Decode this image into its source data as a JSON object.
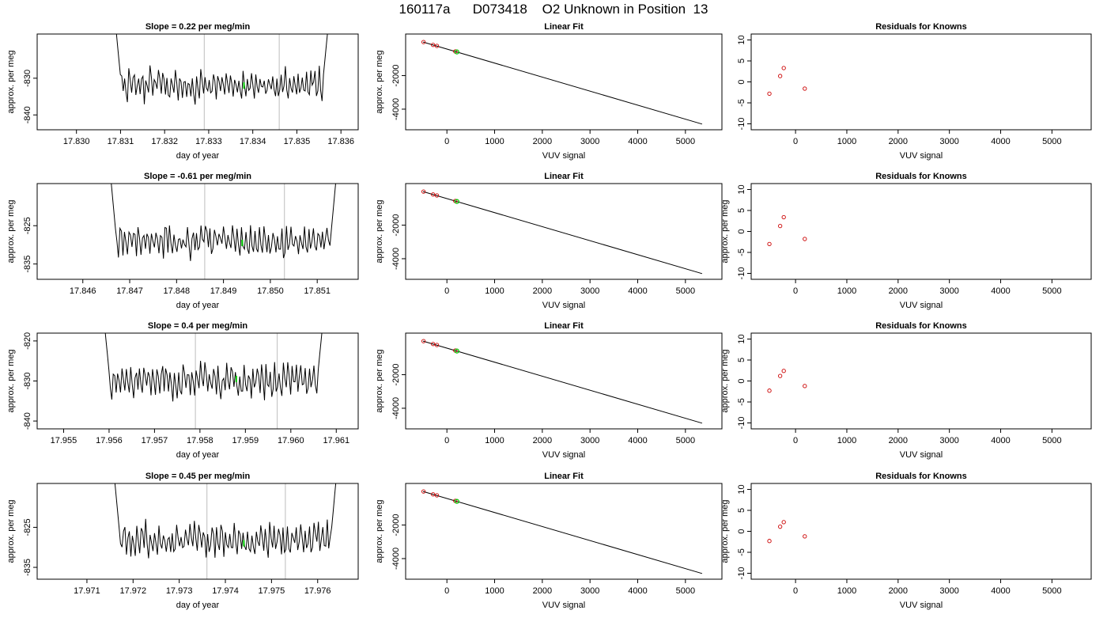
{
  "title": "160117a      D073418    O2 Unknown in Position  13",
  "colors": {
    "trace": "#000000",
    "marker": "#00cc00",
    "known_points": "#cc0000",
    "gridline": "#c8c8c8"
  },
  "chart_data": [
    {
      "type": "line",
      "row": 0,
      "panel": "timeseries",
      "title": "Slope =  0.22  per meg/min",
      "xlabel": "day of year",
      "ylabel": "approx. per meg",
      "xlim": [
        17.8294,
        17.8361
      ],
      "ylim": [
        -843,
        -819
      ],
      "xticks": [
        "17.830",
        "17.831",
        "17.832",
        "17.833",
        "17.834",
        "17.835",
        "17.836"
      ],
      "yticks": [
        "-830",
        "-840"
      ],
      "vlines": [
        17.8329,
        17.8346
      ],
      "t_start": 17.8309,
      "t_end": 17.8357,
      "y_start": -817,
      "y_end": -817,
      "center": -832,
      "amp": 4,
      "seed": 3,
      "marker": {
        "x": 17.8338,
        "y": -832
      }
    },
    {
      "type": "scatter",
      "row": 0,
      "panel": "fit",
      "title": "Linear Fit",
      "xlabel": "VUV signal",
      "ylabel": "approx. per meg",
      "xlim": [
        -600,
        5500
      ],
      "ylim": [
        -5000,
        250
      ],
      "xticks": [
        "0",
        "1000",
        "2000",
        "3000",
        "4000",
        "5000"
      ],
      "yticks": [
        "-2000",
        "-4000"
      ],
      "line": [
        [
          -500,
          0
        ],
        [
          5350,
          -4890
        ]
      ],
      "points": [
        [
          -490,
          0
        ],
        [
          -290,
          -170
        ],
        [
          -210,
          -230
        ],
        [
          175,
          -560
        ]
      ],
      "unknown": [
        210,
        -590
      ]
    },
    {
      "type": "scatter",
      "row": 0,
      "panel": "residuals",
      "title": "Residuals for Knowns",
      "xlabel": "VUV signal",
      "ylabel": "",
      "xlim": [
        -600,
        5500
      ],
      "ylim": [
        -10.5,
        10.5
      ],
      "xticks": [
        "0",
        "1000",
        "2000",
        "3000",
        "4000",
        "5000"
      ],
      "yticks": [
        "-10",
        "-5",
        "0",
        "5",
        "10"
      ],
      "points": [
        [
          -510,
          -2.8
        ],
        [
          -300,
          1.4
        ],
        [
          -230,
          3.3
        ],
        [
          180,
          -1.6
        ]
      ]
    },
    {
      "type": "line",
      "row": 1,
      "panel": "timeseries",
      "title": "Slope =  -0.61  per meg/min",
      "xlabel": "day of year",
      "ylabel": "approx. per meg",
      "xlim": [
        17.8453,
        17.8516
      ],
      "ylim": [
        -838,
        -815
      ],
      "xticks": [
        "17.846",
        "17.847",
        "17.848",
        "17.849",
        "17.850",
        "17.851"
      ],
      "yticks": [
        "-825",
        "-835"
      ],
      "vlines": [
        17.8486,
        17.8503
      ],
      "t_start": 17.8466,
      "t_end": 17.8514,
      "y_start": -813,
      "y_end": -813,
      "center": -829,
      "amp": 4,
      "seed": 7,
      "marker": {
        "x": 17.8494,
        "y": -829.5
      }
    },
    {
      "type": "scatter",
      "row": 1,
      "panel": "fit",
      "title": "Linear Fit",
      "xlabel": "VUV signal",
      "ylabel": "approx. per meg",
      "xlim": [
        -600,
        5500
      ],
      "ylim": [
        -5000,
        250
      ],
      "xticks": [
        "0",
        "1000",
        "2000",
        "3000",
        "4000",
        "5000"
      ],
      "yticks": [
        "-2000",
        "-4000"
      ],
      "line": [
        [
          -500,
          0
        ],
        [
          5350,
          -4890
        ]
      ],
      "points": [
        [
          -490,
          0
        ],
        [
          -290,
          -170
        ],
        [
          -210,
          -230
        ],
        [
          175,
          -560
        ]
      ],
      "unknown": [
        210,
        -590
      ]
    },
    {
      "type": "scatter",
      "row": 1,
      "panel": "residuals",
      "title": "Residuals for Knowns",
      "xlabel": "VUV signal",
      "ylabel": "approx. per meg",
      "xlim": [
        -600,
        5500
      ],
      "ylim": [
        -10.5,
        10.5
      ],
      "xticks": [
        "0",
        "1000",
        "2000",
        "3000",
        "4000",
        "5000"
      ],
      "yticks": [
        "-10",
        "-5",
        "0",
        "5",
        "10"
      ],
      "points": [
        [
          -510,
          -3.0
        ],
        [
          -300,
          1.3
        ],
        [
          -230,
          3.4
        ],
        [
          180,
          -1.8
        ]
      ]
    },
    {
      "type": "line",
      "row": 2,
      "panel": "timeseries",
      "title": "Slope =  0.4  per meg/min",
      "xlabel": "day of year",
      "ylabel": "approx. per meg",
      "xlim": [
        17.9547,
        17.9612
      ],
      "ylim": [
        -841,
        -819
      ],
      "xticks": [
        "17.955",
        "17.956",
        "17.957",
        "17.958",
        "17.959",
        "17.960",
        "17.961"
      ],
      "yticks": [
        "-820",
        "-830",
        "-840"
      ],
      "vlines": [
        17.9579,
        17.9597
      ],
      "t_start": 17.9559,
      "t_end": 17.9607,
      "y_start": -816,
      "y_end": -816,
      "center": -830,
      "amp": 4,
      "seed": 11,
      "marker": {
        "x": 17.9588,
        "y": -829.5
      }
    },
    {
      "type": "scatter",
      "row": 2,
      "panel": "fit",
      "title": "Linear Fit",
      "xlabel": "VUV signal",
      "ylabel": "approx. per meg",
      "xlim": [
        -600,
        5500
      ],
      "ylim": [
        -5000,
        250
      ],
      "xticks": [
        "0",
        "1000",
        "2000",
        "3000",
        "4000",
        "5000"
      ],
      "yticks": [
        "-2000",
        "-4000"
      ],
      "line": [
        [
          -500,
          0
        ],
        [
          5350,
          -4890
        ]
      ],
      "points": [
        [
          -490,
          0
        ],
        [
          -290,
          -170
        ],
        [
          -210,
          -230
        ],
        [
          175,
          -560
        ]
      ],
      "unknown": [
        210,
        -590
      ]
    },
    {
      "type": "scatter",
      "row": 2,
      "panel": "residuals",
      "title": "Residuals for Knowns",
      "xlabel": "VUV signal",
      "ylabel": "approx. per meg",
      "xlim": [
        -600,
        5500
      ],
      "ylim": [
        -10.5,
        10.5
      ],
      "xticks": [
        "0",
        "1000",
        "2000",
        "3000",
        "4000",
        "5000"
      ],
      "yticks": [
        "-10",
        "-5",
        "0",
        "5",
        "10"
      ],
      "points": [
        [
          -510,
          -2.3
        ],
        [
          -300,
          1.2
        ],
        [
          -230,
          2.4
        ],
        [
          180,
          -1.2
        ]
      ]
    },
    {
      "type": "line",
      "row": 3,
      "panel": "timeseries",
      "title": "Slope =  0.45  per meg/min",
      "xlabel": "day of year",
      "ylabel": "approx. per meg",
      "xlim": [
        17.9702,
        17.9766
      ],
      "ylim": [
        -837,
        -815
      ],
      "xticks": [
        "17.971",
        "17.972",
        "17.973",
        "17.974",
        "17.975",
        "17.976"
      ],
      "yticks": [
        "-825",
        "-835"
      ],
      "vlines": [
        17.9736,
        17.9753
      ],
      "t_start": 17.9716,
      "t_end": 17.9764,
      "y_start": -813,
      "y_end": -813,
      "center": -828,
      "amp": 4,
      "seed": 17,
      "marker": {
        "x": 17.9744,
        "y": -829
      }
    },
    {
      "type": "scatter",
      "row": 3,
      "panel": "fit",
      "title": "Linear Fit",
      "xlabel": "VUV signal",
      "ylabel": "approx. per meg",
      "xlim": [
        -600,
        5500
      ],
      "ylim": [
        -5000,
        250
      ],
      "xticks": [
        "0",
        "1000",
        "2000",
        "3000",
        "4000",
        "5000"
      ],
      "yticks": [
        "-2000",
        "-4000"
      ],
      "line": [
        [
          -500,
          0
        ],
        [
          5350,
          -4890
        ]
      ],
      "points": [
        [
          -490,
          0
        ],
        [
          -290,
          -170
        ],
        [
          -210,
          -230
        ],
        [
          175,
          -560
        ]
      ],
      "unknown": [
        210,
        -590
      ]
    },
    {
      "type": "scatter",
      "row": 3,
      "panel": "residuals",
      "title": "Residuals for Knowns",
      "xlabel": "VUV signal",
      "ylabel": "approx. per meg",
      "xlim": [
        -600,
        5500
      ],
      "ylim": [
        -10.5,
        10.5
      ],
      "xticks": [
        "0",
        "1000",
        "2000",
        "3000",
        "4000",
        "5000"
      ],
      "yticks": [
        "-10",
        "-5",
        "0",
        "5",
        "10"
      ],
      "points": [
        [
          -510,
          -2.3
        ],
        [
          -300,
          1.1
        ],
        [
          -230,
          2.2
        ],
        [
          180,
          -1.2
        ]
      ]
    }
  ]
}
